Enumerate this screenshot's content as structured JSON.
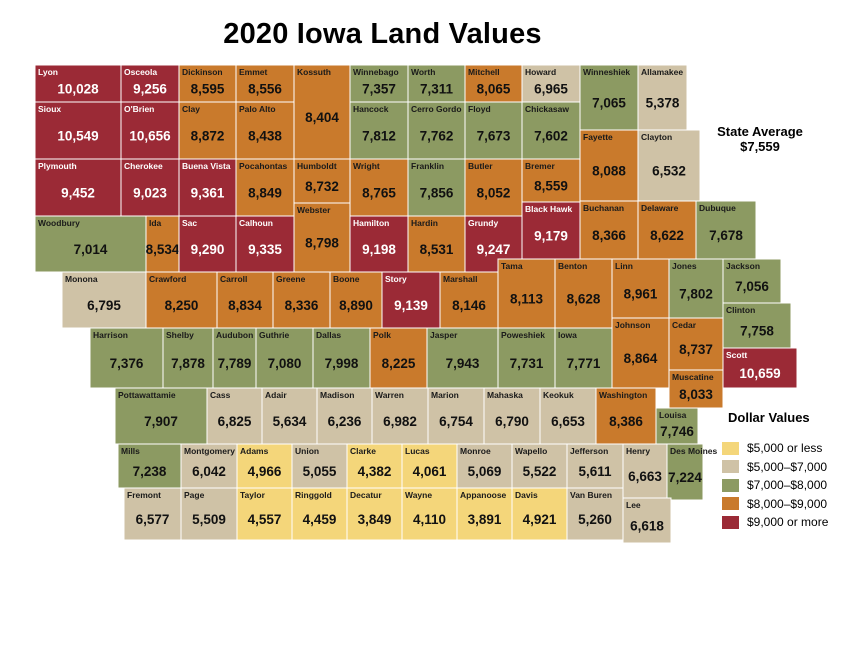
{
  "title": "2020 Iowa Land Values",
  "state_average": {
    "label": "State Average",
    "value": "$7,559"
  },
  "legend": {
    "title": "Dollar Values",
    "items": [
      {
        "label": "$5,000 or less",
        "color": "#f4d67a"
      },
      {
        "label": "$5,000–$7,000",
        "color": "#cfc2a6"
      },
      {
        "label": "$7,000–$8,000",
        "color": "#8c9a62"
      },
      {
        "label": "$8,000–$9,000",
        "color": "#c97a2c"
      },
      {
        "label": "$9,000 or more",
        "color": "#9b2a36"
      }
    ]
  },
  "counties": [
    {
      "name": "Lyon",
      "value": "10,028",
      "tier": 4
    },
    {
      "name": "Osceola",
      "value": "9,256",
      "tier": 4
    },
    {
      "name": "Dickinson",
      "value": "8,595",
      "tier": 3
    },
    {
      "name": "Emmet",
      "value": "8,556",
      "tier": 3
    },
    {
      "name": "Kossuth",
      "value": "8,404",
      "tier": 3
    },
    {
      "name": "Winnebago",
      "value": "7,357",
      "tier": 2
    },
    {
      "name": "Worth",
      "value": "7,311",
      "tier": 2
    },
    {
      "name": "Mitchell",
      "value": "8,065",
      "tier": 3
    },
    {
      "name": "Howard",
      "value": "6,965",
      "tier": 1
    },
    {
      "name": "Winneshiek",
      "value": "7,065",
      "tier": 2
    },
    {
      "name": "Allamakee",
      "value": "5,378",
      "tier": 1
    },
    {
      "name": "Sioux",
      "value": "10,549",
      "tier": 4
    },
    {
      "name": "O'Brien",
      "value": "10,656",
      "tier": 4
    },
    {
      "name": "Clay",
      "value": "8,872",
      "tier": 3
    },
    {
      "name": "Palo Alto",
      "value": "8,438",
      "tier": 3
    },
    {
      "name": "Hancock",
      "value": "7,812",
      "tier": 2
    },
    {
      "name": "Cerro Gordo",
      "value": "7,762",
      "tier": 2
    },
    {
      "name": "Floyd",
      "value": "7,673",
      "tier": 2
    },
    {
      "name": "Chickasaw",
      "value": "7,602",
      "tier": 2
    },
    {
      "name": "Fayette",
      "value": "8,088",
      "tier": 3
    },
    {
      "name": "Clayton",
      "value": "6,532",
      "tier": 1
    },
    {
      "name": "Plymouth",
      "value": "9,452",
      "tier": 4
    },
    {
      "name": "Cherokee",
      "value": "9,023",
      "tier": 4
    },
    {
      "name": "Buena Vista",
      "value": "9,361",
      "tier": 4
    },
    {
      "name": "Pocahontas",
      "value": "8,849",
      "tier": 3
    },
    {
      "name": "Humboldt",
      "value": "8,732",
      "tier": 3
    },
    {
      "name": "Wright",
      "value": "8,765",
      "tier": 3
    },
    {
      "name": "Franklin",
      "value": "7,856",
      "tier": 2
    },
    {
      "name": "Butler",
      "value": "8,052",
      "tier": 3
    },
    {
      "name": "Bremer",
      "value": "8,559",
      "tier": 3
    },
    {
      "name": "Woodbury",
      "value": "7,014",
      "tier": 2
    },
    {
      "name": "Ida",
      "value": "8,534",
      "tier": 3
    },
    {
      "name": "Sac",
      "value": "9,290",
      "tier": 4
    },
    {
      "name": "Calhoun",
      "value": "9,335",
      "tier": 4
    },
    {
      "name": "Webster",
      "value": "8,798",
      "tier": 3
    },
    {
      "name": "Hamilton",
      "value": "9,198",
      "tier": 4
    },
    {
      "name": "Hardin",
      "value": "8,531",
      "tier": 3
    },
    {
      "name": "Grundy",
      "value": "9,247",
      "tier": 4
    },
    {
      "name": "Black Hawk",
      "value": "9,179",
      "tier": 4
    },
    {
      "name": "Buchanan",
      "value": "8,366",
      "tier": 3
    },
    {
      "name": "Delaware",
      "value": "8,622",
      "tier": 3
    },
    {
      "name": "Dubuque",
      "value": "7,678",
      "tier": 2
    },
    {
      "name": "Monona",
      "value": "6,795",
      "tier": 1
    },
    {
      "name": "Crawford",
      "value": "8,250",
      "tier": 3
    },
    {
      "name": "Carroll",
      "value": "8,834",
      "tier": 3
    },
    {
      "name": "Greene",
      "value": "8,336",
      "tier": 3
    },
    {
      "name": "Boone",
      "value": "8,890",
      "tier": 3
    },
    {
      "name": "Story",
      "value": "9,139",
      "tier": 4
    },
    {
      "name": "Marshall",
      "value": "8,146",
      "tier": 3
    },
    {
      "name": "Tama",
      "value": "8,113",
      "tier": 3
    },
    {
      "name": "Benton",
      "value": "8,628",
      "tier": 3
    },
    {
      "name": "Linn",
      "value": "8,961",
      "tier": 3
    },
    {
      "name": "Jones",
      "value": "7,802",
      "tier": 2
    },
    {
      "name": "Jackson",
      "value": "7,056",
      "tier": 2
    },
    {
      "name": "Clinton",
      "value": "7,758",
      "tier": 2
    },
    {
      "name": "Harrison",
      "value": "7,376",
      "tier": 2
    },
    {
      "name": "Shelby",
      "value": "7,878",
      "tier": 2
    },
    {
      "name": "Audubon",
      "value": "7,789",
      "tier": 2
    },
    {
      "name": "Guthrie",
      "value": "7,080",
      "tier": 2
    },
    {
      "name": "Dallas",
      "value": "7,998",
      "tier": 2
    },
    {
      "name": "Polk",
      "value": "8,225",
      "tier": 3
    },
    {
      "name": "Jasper",
      "value": "7,943",
      "tier": 2
    },
    {
      "name": "Poweshiek",
      "value": "7,731",
      "tier": 2
    },
    {
      "name": "Iowa",
      "value": "7,771",
      "tier": 2
    },
    {
      "name": "Johnson",
      "value": "8,864",
      "tier": 3
    },
    {
      "name": "Cedar",
      "value": "8,737",
      "tier": 3
    },
    {
      "name": "Scott",
      "value": "10,659",
      "tier": 4
    },
    {
      "name": "Pottawattamie",
      "value": "7,907",
      "tier": 2
    },
    {
      "name": "Cass",
      "value": "6,825",
      "tier": 1
    },
    {
      "name": "Adair",
      "value": "5,634",
      "tier": 1
    },
    {
      "name": "Madison",
      "value": "6,236",
      "tier": 1
    },
    {
      "name": "Warren",
      "value": "6,982",
      "tier": 1
    },
    {
      "name": "Marion",
      "value": "6,754",
      "tier": 1
    },
    {
      "name": "Mahaska",
      "value": "6,790",
      "tier": 1
    },
    {
      "name": "Keokuk",
      "value": "6,653",
      "tier": 1
    },
    {
      "name": "Washington",
      "value": "8,386",
      "tier": 3
    },
    {
      "name": "Muscatine",
      "value": "8,033",
      "tier": 3
    },
    {
      "name": "Louisa",
      "value": "7,746",
      "tier": 2
    },
    {
      "name": "Mills",
      "value": "7,238",
      "tier": 2
    },
    {
      "name": "Montgomery",
      "value": "6,042",
      "tier": 1
    },
    {
      "name": "Adams",
      "value": "4,966",
      "tier": 0
    },
    {
      "name": "Union",
      "value": "5,055",
      "tier": 1
    },
    {
      "name": "Clarke",
      "value": "4,382",
      "tier": 0
    },
    {
      "name": "Lucas",
      "value": "4,061",
      "tier": 0
    },
    {
      "name": "Monroe",
      "value": "5,069",
      "tier": 1
    },
    {
      "name": "Wapello",
      "value": "5,522",
      "tier": 1
    },
    {
      "name": "Jefferson",
      "value": "5,611",
      "tier": 1
    },
    {
      "name": "Henry",
      "value": "6,663",
      "tier": 1
    },
    {
      "name": "Des Moines",
      "value": "7,224",
      "tier": 2
    },
    {
      "name": "Fremont",
      "value": "6,577",
      "tier": 1
    },
    {
      "name": "Page",
      "value": "5,509",
      "tier": 1
    },
    {
      "name": "Taylor",
      "value": "4,557",
      "tier": 0
    },
    {
      "name": "Ringgold",
      "value": "4,459",
      "tier": 0
    },
    {
      "name": "Decatur",
      "value": "3,849",
      "tier": 0
    },
    {
      "name": "Wayne",
      "value": "4,110",
      "tier": 0
    },
    {
      "name": "Appanoose",
      "value": "3,891",
      "tier": 0
    },
    {
      "name": "Davis",
      "value": "4,921",
      "tier": 0
    },
    {
      "name": "Van Buren",
      "value": "5,260",
      "tier": 1
    },
    {
      "name": "Lee",
      "value": "6,618",
      "tier": 1
    }
  ]
}
